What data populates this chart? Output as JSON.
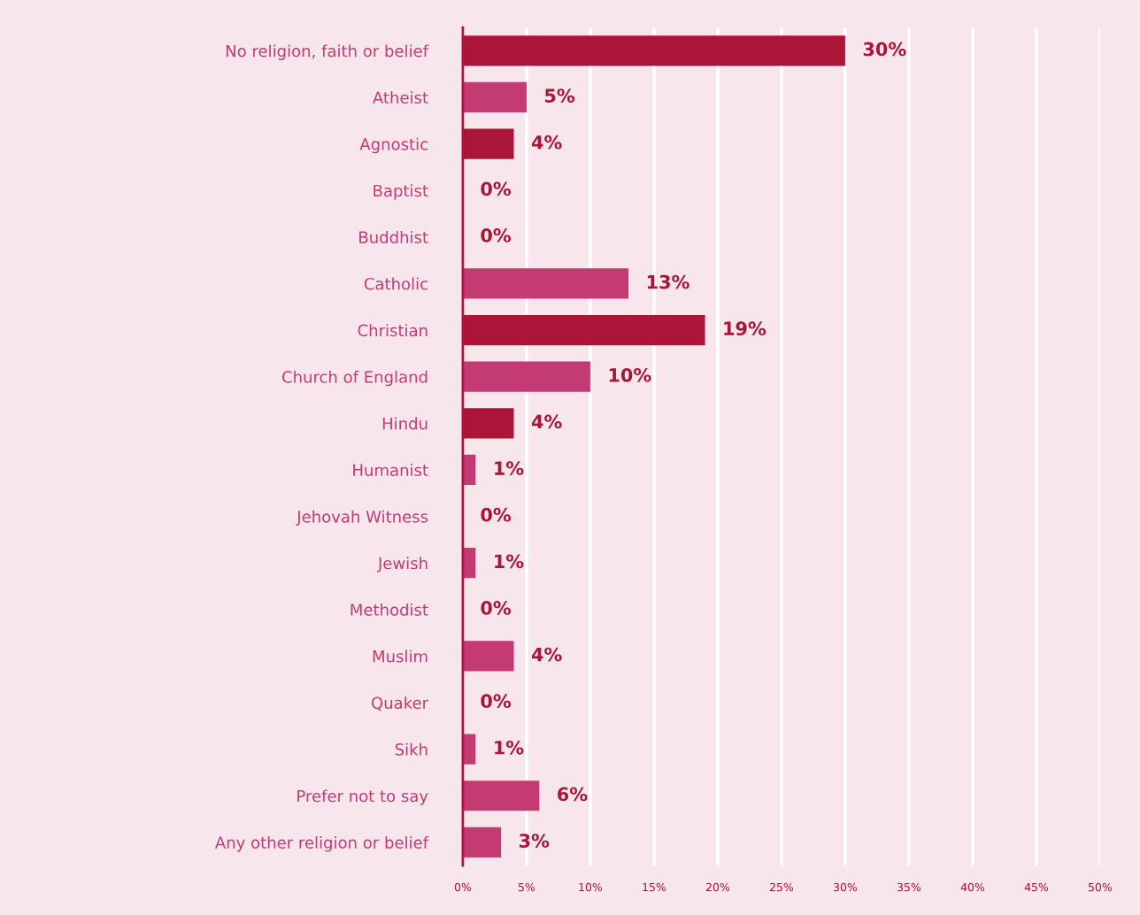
{
  "chart_data": {
    "type": "bar",
    "orientation": "horizontal",
    "categories": [
      "No religion, faith or belief",
      "Atheist",
      "Agnostic",
      "Baptist",
      "Buddhist",
      "Catholic",
      "Christian",
      "Church of England",
      "Hindu",
      "Humanist",
      "Jehovah Witness",
      "Jewish",
      "Methodist",
      "Muslim",
      "Quaker",
      "Sikh",
      "Prefer not to say",
      "Any other religion or belief"
    ],
    "values": [
      30,
      5,
      4,
      0,
      0,
      13,
      19,
      10,
      4,
      1,
      0,
      1,
      0,
      4,
      0,
      1,
      6,
      3
    ],
    "colors": [
      "#ab1538",
      "#c43a73",
      "#ab1538",
      "#c43a73",
      "#c43a73",
      "#c43a73",
      "#ab1538",
      "#c43a73",
      "#ab1538",
      "#c43a73",
      "#c43a73",
      "#c43a73",
      "#c43a73",
      "#c43a73",
      "#c43a73",
      "#c43a73",
      "#c43a73",
      "#c43a73"
    ],
    "value_labels": [
      "30%",
      "5%",
      "4%",
      "0%",
      "0%",
      "13%",
      "19%",
      "10%",
      "4%",
      "1%",
      "0%",
      "1%",
      "0%",
      "4%",
      "0%",
      "1%",
      "6%",
      "3%"
    ],
    "xlim": [
      0,
      50
    ],
    "xticks": [
      {
        "value": 0,
        "label": "0%"
      },
      {
        "value": 5,
        "label": "5%"
      },
      {
        "value": 10,
        "label": "10%"
      },
      {
        "value": 15,
        "label": "15%"
      },
      {
        "value": 20,
        "label": "20%"
      },
      {
        "value": 25,
        "label": "25%"
      },
      {
        "value": 30,
        "label": "30%"
      },
      {
        "value": 35,
        "label": "35%"
      },
      {
        "value": 40,
        "label": "40%"
      },
      {
        "value": 45,
        "label": "45%"
      },
      {
        "value": 50,
        "label": "50%"
      }
    ],
    "grid": "x",
    "legend": false
  }
}
